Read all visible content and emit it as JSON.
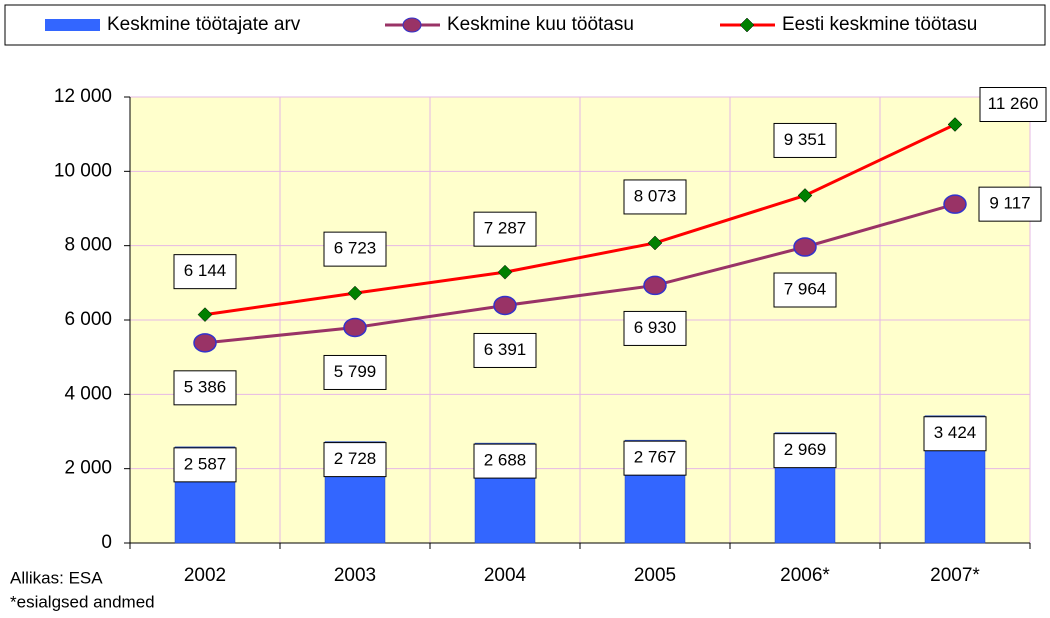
{
  "chart_data": {
    "type": "bar",
    "categories": [
      "2002",
      "2003",
      "2004",
      "2005",
      "2006*",
      "2007*"
    ],
    "series": [
      {
        "name": "Keskmine töötajate arv",
        "type": "bar",
        "color": "#3366ff",
        "values": [
          2587,
          2728,
          2688,
          2767,
          2969,
          3424
        ],
        "value_labels": [
          "2 587",
          "2 728",
          "2 688",
          "2 767",
          "2 969",
          "3 424"
        ]
      },
      {
        "name": "Keskmine kuu töötasu",
        "type": "line",
        "color": "#993366",
        "marker_color": "#993366",
        "values": [
          5386,
          5799,
          6391,
          6930,
          7964,
          9117
        ],
        "value_labels": [
          "5 386",
          "5 799",
          "6 391",
          "6 930",
          "7 964",
          "9 117"
        ]
      },
      {
        "name": "Eesti keskmine töötasu",
        "type": "line",
        "color": "#ff0000",
        "marker_color": "#008000",
        "values": [
          6144,
          6723,
          7287,
          8073,
          9351,
          11260
        ],
        "value_labels": [
          "6 144",
          "6 723",
          "7 287",
          "8 073",
          "9 351",
          "11 260"
        ]
      }
    ],
    "ylim": [
      0,
      12000
    ],
    "yticks": [
      0,
      {
        "value": 2000,
        "label": "2 000"
      },
      {
        "value": 4000,
        "label": "4 000"
      },
      {
        "value": 6000,
        "label": "6 000"
      },
      {
        "value": 8000,
        "label": "8 000"
      },
      {
        "value": 10000,
        "label": "10 000"
      },
      {
        "value": 12000,
        "label": "12 000"
      }
    ],
    "grid": true,
    "source": "Allikas: ESA",
    "note": "*esialgsed andmed"
  }
}
